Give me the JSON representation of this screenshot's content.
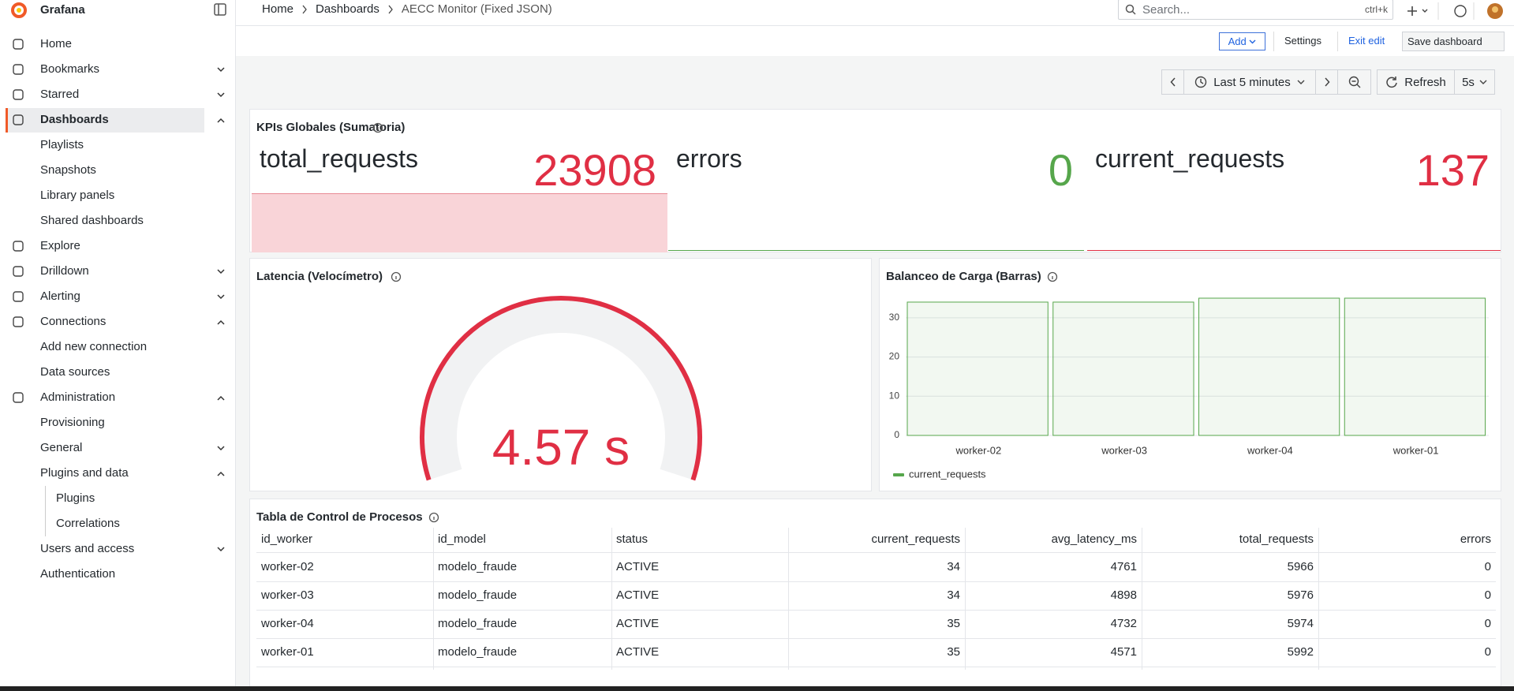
{
  "sidebar": {
    "brand": "Grafana",
    "items": [
      {
        "label": "Home"
      },
      {
        "label": "Bookmarks",
        "expanded": false
      },
      {
        "label": "Starred",
        "expanded": false
      },
      {
        "label": "Dashboards",
        "expanded": true,
        "active": true,
        "children": [
          {
            "label": "Playlists"
          },
          {
            "label": "Snapshots"
          },
          {
            "label": "Library panels"
          },
          {
            "label": "Shared dashboards"
          }
        ]
      },
      {
        "label": "Explore"
      },
      {
        "label": "Drilldown",
        "expanded": false
      },
      {
        "label": "Alerting",
        "expanded": false
      },
      {
        "label": "Connections",
        "expanded": true,
        "children": [
          {
            "label": "Add new connection"
          },
          {
            "label": "Data sources"
          }
        ]
      },
      {
        "label": "Administration",
        "expanded": true,
        "children": [
          {
            "label": "Provisioning"
          },
          {
            "label": "General",
            "expanded": false
          },
          {
            "label": "Plugins and data",
            "expanded": true,
            "children": [
              {
                "label": "Plugins"
              },
              {
                "label": "Correlations"
              }
            ]
          },
          {
            "label": "Users and access",
            "expanded": false
          },
          {
            "label": "Authentication"
          }
        ]
      }
    ]
  },
  "breadcrumb": [
    "Home",
    "Dashboards",
    "AECC Monitor (Fixed JSON)"
  ],
  "search": {
    "placeholder": "Search...",
    "shortcut": "ctrl+k"
  },
  "toolbar": {
    "add": "Add",
    "settings": "Settings",
    "exit": "Exit edit",
    "save": "Save dashboard"
  },
  "timepicker": {
    "range": "Last 5 minutes",
    "refresh": "Refresh",
    "interval": "5s"
  },
  "kpi": {
    "title": "KPIs Globales (Sumatoria)",
    "stats": [
      {
        "name": "total_requests",
        "value": 23908,
        "color": "#e02f44"
      },
      {
        "name": "errors",
        "value": 0,
        "color": "#56a64b"
      },
      {
        "name": "current_requests",
        "value": 137,
        "color": "#e02f44"
      }
    ]
  },
  "gauge": {
    "title": "Latencia (Velocímetro)",
    "value": 4.57,
    "value_label": "4.57 s",
    "color": "#e02f44"
  },
  "bar_chart": {
    "type": "bar",
    "title": "Balanceo de Carga (Barras)",
    "categories": [
      "worker-02",
      "worker-03",
      "worker-04",
      "worker-01"
    ],
    "series": [
      {
        "name": "current_requests",
        "color": "#56a64b",
        "values": [
          34,
          34,
          35,
          35
        ]
      }
    ],
    "ylim": [
      0,
      35
    ],
    "yticks": [
      0,
      10,
      20,
      30
    ],
    "grid": true
  },
  "table": {
    "title": "Tabla de Control de Procesos",
    "columns": [
      "id_worker",
      "id_model",
      "status",
      "current_requests",
      "avg_latency_ms",
      "total_requests",
      "errors"
    ],
    "rows": [
      [
        "worker-02",
        "modelo_fraude",
        "ACTIVE",
        34,
        4761,
        5966,
        0
      ],
      [
        "worker-03",
        "modelo_fraude",
        "ACTIVE",
        34,
        4898,
        5976,
        0
      ],
      [
        "worker-04",
        "modelo_fraude",
        "ACTIVE",
        35,
        4732,
        5974,
        0
      ],
      [
        "worker-01",
        "modelo_fraude",
        "ACTIVE",
        35,
        4571,
        5992,
        0
      ]
    ]
  }
}
